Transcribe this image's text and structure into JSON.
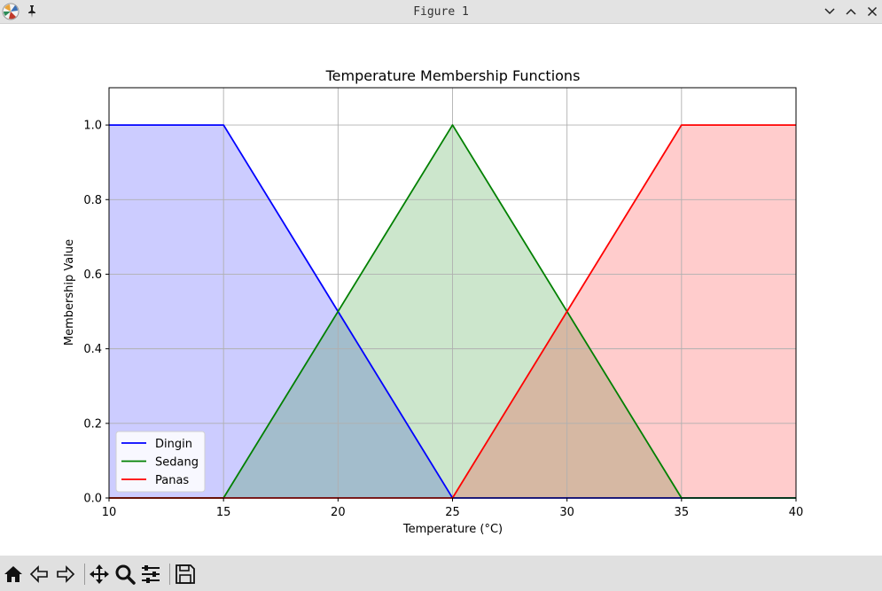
{
  "window": {
    "title": "Figure 1",
    "icons": {
      "app": "matplotlib-app-icon",
      "pin": "pin-icon",
      "minimize": "chevron-down-icon",
      "maximize": "chevron-up-icon",
      "close": "close-icon"
    }
  },
  "toolbar": {
    "buttons": [
      "home-icon",
      "back-icon",
      "forward-icon",
      "pan-icon",
      "zoom-icon",
      "configure-subplots-icon",
      "save-icon"
    ]
  },
  "chart_data": {
    "type": "line",
    "title": "Temperature Membership Functions",
    "xlabel": "Temperature (°C)",
    "ylabel": "Membership Value",
    "xlim": [
      10,
      40
    ],
    "ylim": [
      0,
      1.1
    ],
    "x_ticks": [
      "10",
      "15",
      "20",
      "25",
      "30",
      "35",
      "40"
    ],
    "y_ticks": [
      "0.0",
      "0.2",
      "0.4",
      "0.6",
      "0.8",
      "1.0"
    ],
    "grid": true,
    "filled": true,
    "legend_position": "lower-left",
    "series": [
      {
        "name": "Dingin",
        "color": "#0000ff",
        "fill": "#ccccff",
        "x": [
          10,
          15,
          25,
          40
        ],
        "y": [
          1,
          1,
          0,
          0
        ]
      },
      {
        "name": "Sedang",
        "color": "#008000",
        "fill": "#cce6cc",
        "x": [
          10,
          15,
          25,
          35,
          40
        ],
        "y": [
          0,
          0,
          1,
          0,
          0
        ]
      },
      {
        "name": "Panas",
        "color": "#ff0000",
        "fill": "#ffcccc",
        "x": [
          10,
          25,
          35,
          40
        ],
        "y": [
          0,
          0,
          1,
          1
        ]
      }
    ]
  }
}
